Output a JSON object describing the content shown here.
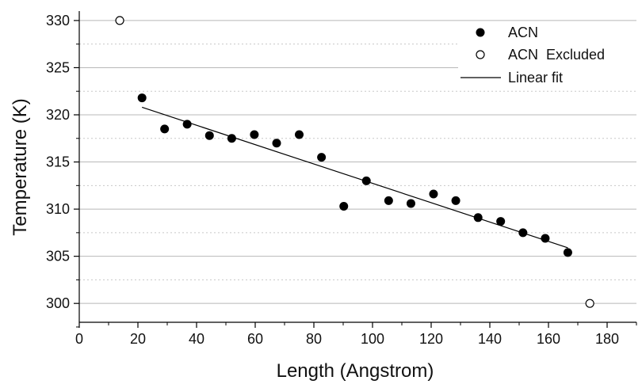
{
  "chart_data": {
    "type": "scatter",
    "xlabel": "Length (Angstrom)",
    "ylabel": "Temperature (K)",
    "xlim": [
      0,
      190
    ],
    "ylim": [
      298,
      331
    ],
    "xticks": [
      0,
      20,
      40,
      60,
      80,
      100,
      120,
      140,
      160,
      180
    ],
    "yticks": [
      300,
      305,
      310,
      315,
      320,
      325,
      330
    ],
    "grid": "horizontal major and minor",
    "legend_position": "top-right",
    "series": [
      {
        "name": "ACN",
        "marker": "filled-circle",
        "color": "#000000",
        "x": [
          21.4,
          29.1,
          36.8,
          44.4,
          52.0,
          59.7,
          67.3,
          75.0,
          82.6,
          90.2,
          97.9,
          105.5,
          113.1,
          120.8,
          128.4,
          136.0,
          143.7,
          151.3,
          158.9,
          166.6
        ],
        "y": [
          321.8,
          318.5,
          319.0,
          317.8,
          317.5,
          317.9,
          317.0,
          317.9,
          315.5,
          310.3,
          313.0,
          310.9,
          310.6,
          311.6,
          310.9,
          309.1,
          308.7,
          307.5,
          306.9,
          305.4
        ]
      },
      {
        "name": "ACN  Excluded",
        "marker": "open-circle",
        "color": "#000000",
        "x": [
          13.8,
          174.1
        ],
        "y": [
          330.0,
          300.0
        ]
      },
      {
        "name": "Linear fit",
        "marker": "line",
        "color": "#000000",
        "x": [
          21.4,
          166.6
        ],
        "y": [
          320.8,
          305.9
        ]
      }
    ]
  }
}
